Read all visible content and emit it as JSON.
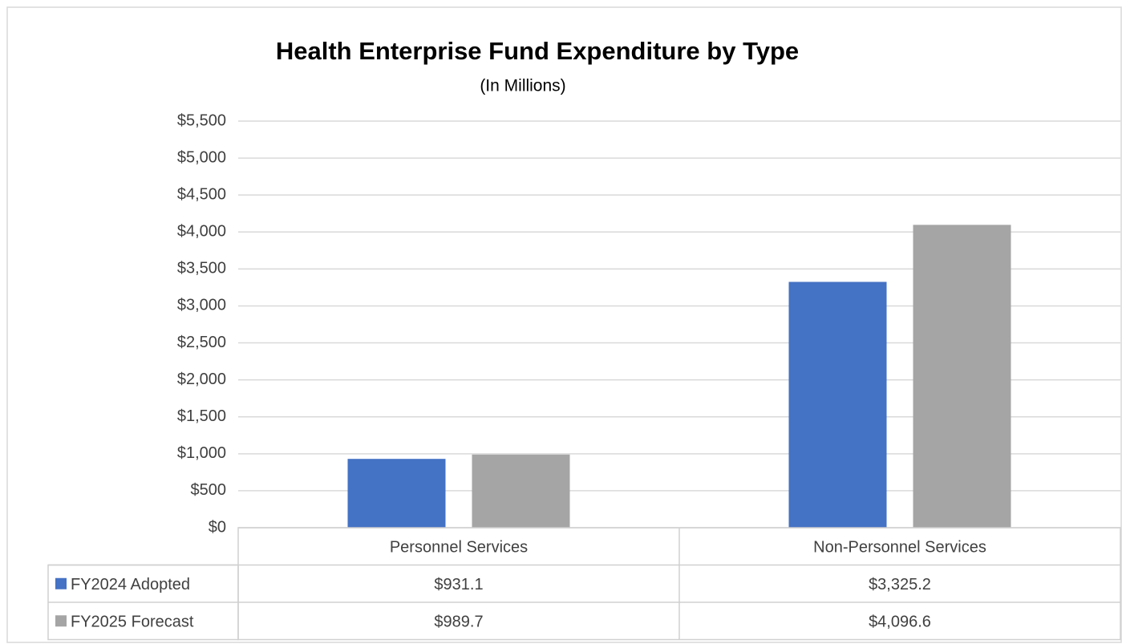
{
  "chart_data": {
    "type": "bar",
    "title": "Health Enterprise Fund Expenditure by Type",
    "subtitle": "(In Millions)",
    "categories": [
      "Personnel Services",
      "Non-Personnel Services"
    ],
    "series": [
      {
        "name": "FY2024 Adopted",
        "color": "#4472c4",
        "values": [
          931.1,
          3325.2
        ],
        "value_labels": [
          "$931.1",
          "$3,325.2"
        ]
      },
      {
        "name": "FY2025 Forecast",
        "color": "#a5a5a5",
        "values": [
          989.7,
          4096.6
        ],
        "value_labels": [
          "$989.7",
          "$4,096.6"
        ]
      }
    ],
    "ylim": [
      0,
      5500
    ],
    "yticks": [
      {
        "value": 0,
        "label": "$0"
      },
      {
        "value": 500,
        "label": "$500"
      },
      {
        "value": 1000,
        "label": "$1,000"
      },
      {
        "value": 1500,
        "label": "$1,500"
      },
      {
        "value": 2000,
        "label": "$2,000"
      },
      {
        "value": 2500,
        "label": "$2,500"
      },
      {
        "value": 3000,
        "label": "$3,000"
      },
      {
        "value": 3500,
        "label": "$3,500"
      },
      {
        "value": 4000,
        "label": "$4,000"
      },
      {
        "value": 4500,
        "label": "$4,500"
      },
      {
        "value": 5000,
        "label": "$5,000"
      },
      {
        "value": 5500,
        "label": "$5,500"
      }
    ],
    "grid": true,
    "legend": "table"
  }
}
